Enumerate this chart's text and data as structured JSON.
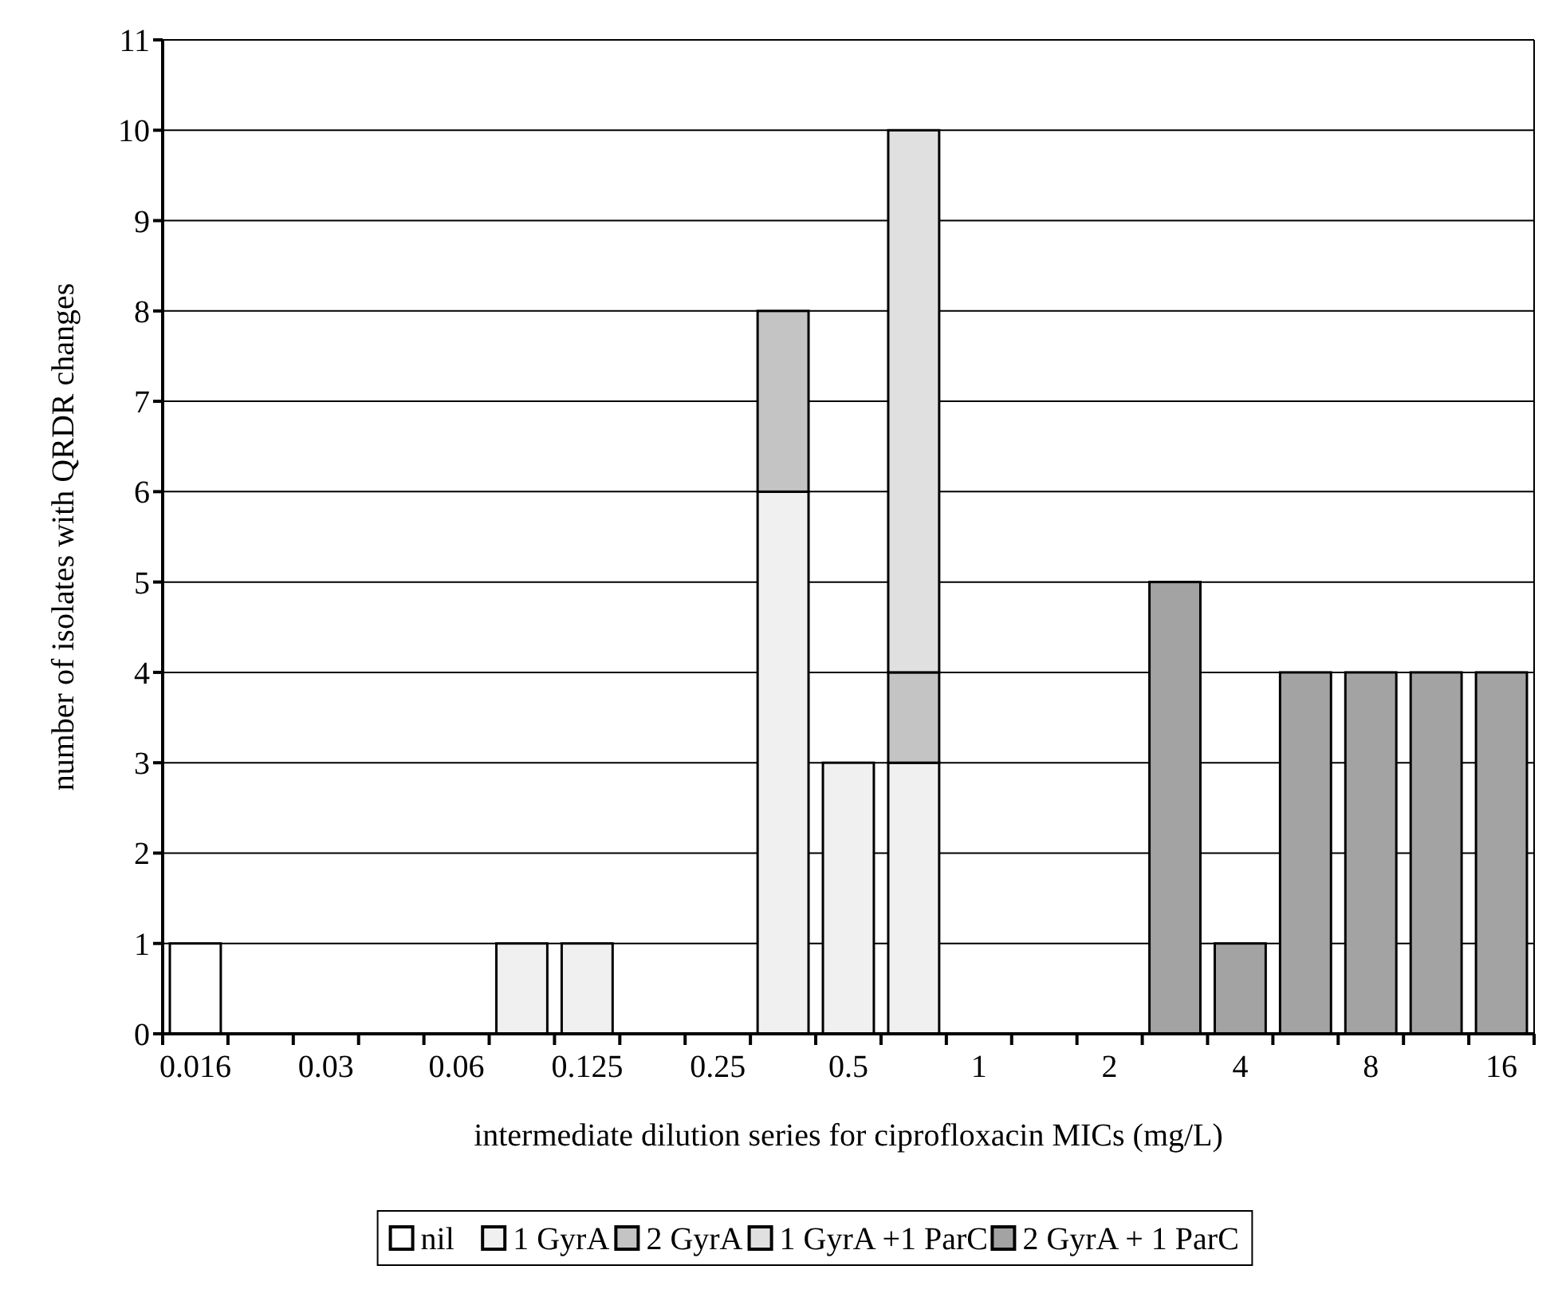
{
  "chart_data": {
    "type": "bar",
    "stacked": true,
    "xlabel": "intermediate dilution series for ciprofloxacin MICs (mg/L)",
    "ylabel": "number of isolates with QRDR changes",
    "categories": [
      "0.016",
      null,
      "0.03",
      null,
      "0.06",
      null,
      "0.125",
      null,
      "0.25",
      null,
      "0.5",
      null,
      "1",
      null,
      "2",
      null,
      "4",
      null,
      "8",
      null,
      "16"
    ],
    "series": [
      {
        "name": "nil",
        "color": "#ffffff",
        "values": [
          1,
          null,
          null,
          null,
          null,
          null,
          null,
          null,
          null,
          null,
          null,
          null,
          null,
          null,
          null,
          null,
          null,
          null,
          null,
          null,
          null
        ]
      },
      {
        "name": "1 GyrA",
        "color": "#f0f0f0",
        "values": [
          null,
          null,
          null,
          null,
          null,
          1,
          1,
          null,
          null,
          6,
          3,
          3,
          null,
          null,
          null,
          null,
          null,
          null,
          null,
          null,
          null
        ]
      },
      {
        "name": "2 GyrA",
        "color": "#c4c4c4",
        "values": [
          null,
          null,
          null,
          null,
          null,
          null,
          null,
          null,
          null,
          2,
          null,
          1,
          null,
          null,
          null,
          null,
          null,
          null,
          null,
          null,
          null
        ]
      },
      {
        "name": "1 GyrA +1 ParC",
        "color": "#e0e0e0",
        "values": [
          null,
          null,
          null,
          null,
          null,
          null,
          null,
          null,
          null,
          null,
          null,
          6,
          null,
          null,
          null,
          null,
          null,
          null,
          null,
          null,
          null
        ]
      },
      {
        "name": "2 GyrA + 1 ParC",
        "color": "#a3a3a3",
        "values": [
          null,
          null,
          null,
          null,
          null,
          null,
          null,
          null,
          null,
          null,
          null,
          null,
          null,
          null,
          null,
          5,
          1,
          4,
          4,
          4,
          4
        ]
      }
    ],
    "ylim": [
      0,
      11
    ],
    "yticks": [
      0,
      1,
      2,
      3,
      4,
      5,
      6,
      7,
      8,
      9,
      10,
      11
    ],
    "grid": "y",
    "legend": "bottom"
  }
}
